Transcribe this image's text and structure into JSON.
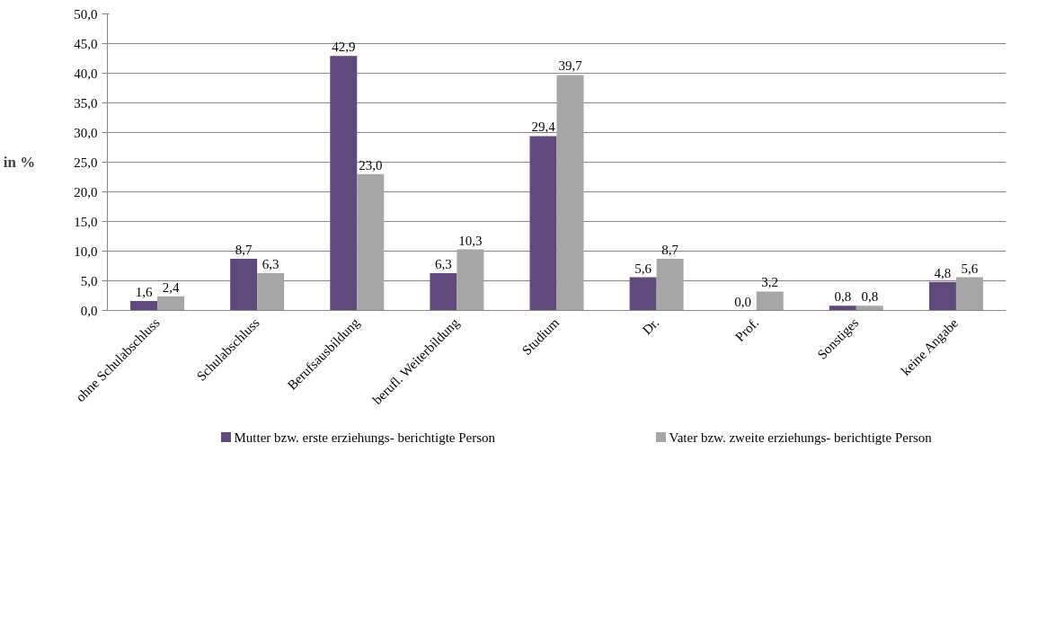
{
  "chart_data": {
    "type": "bar",
    "ylabel": "in %",
    "categories": [
      "ohne Schulabschluss",
      "Schulabschluss",
      "Berufsausbildung",
      "berufl. Weiterbildung",
      "Studium",
      "Dr.",
      "Prof.",
      "Sonstiges",
      "keine Angabe"
    ],
    "series": [
      {
        "name": "Mutter bzw. erste erziehungs- berichtigte Person",
        "color": "#604a7b",
        "values": [
          1.6,
          8.7,
          42.9,
          6.3,
          29.4,
          5.6,
          0.0,
          0.8,
          4.8
        ],
        "value_labels": [
          "1,6",
          "8,7",
          "42,9",
          "6,3",
          "29,4",
          "5,6",
          "0,0",
          "0,8",
          "4,8"
        ]
      },
      {
        "name": "Vater bzw. zweite erziehungs- berichtigte Person",
        "color": "#a6a6a6",
        "values": [
          2.4,
          6.3,
          23.0,
          10.3,
          39.7,
          8.7,
          3.2,
          0.8,
          5.6
        ],
        "value_labels": [
          "2,4",
          "6,3",
          "23,0",
          "10,3",
          "39,7",
          "8,7",
          "3,2",
          "0,8",
          "5,6"
        ]
      }
    ],
    "ylim": [
      0,
      50
    ],
    "yticks": [
      {
        "value": 0,
        "label": "0,0"
      },
      {
        "value": 5,
        "label": "5,0"
      },
      {
        "value": 10,
        "label": "10,0"
      },
      {
        "value": 15,
        "label": "15,0"
      },
      {
        "value": 20,
        "label": "20,0"
      },
      {
        "value": 25,
        "label": "25,0"
      },
      {
        "value": 30,
        "label": "30,0"
      },
      {
        "value": 35,
        "label": "35,0"
      },
      {
        "value": 40,
        "label": "40,0"
      },
      {
        "value": 45,
        "label": "45,0"
      },
      {
        "value": 50,
        "label": "50,0"
      }
    ],
    "grid": "y",
    "legend": "bottom"
  }
}
